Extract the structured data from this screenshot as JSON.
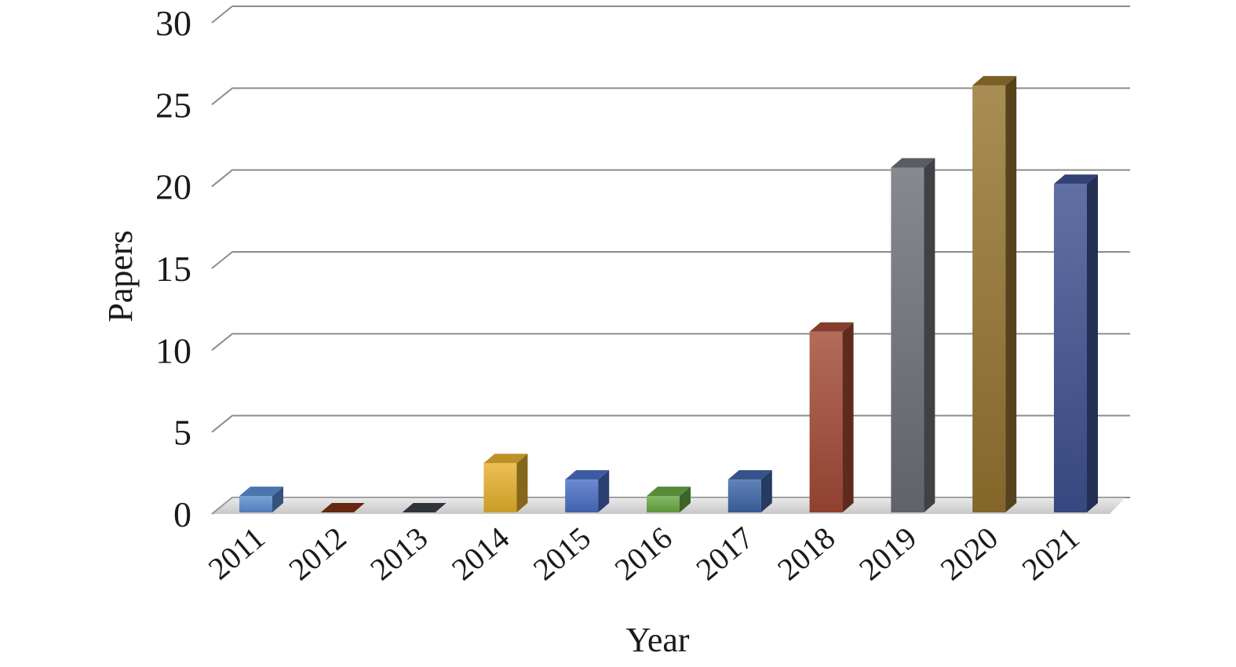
{
  "chart_data": {
    "type": "bar",
    "title": "",
    "xlabel": "Year",
    "ylabel": "Papers",
    "categories": [
      "2011",
      "2012",
      "2013",
      "2014",
      "2015",
      "2016",
      "2017",
      "2018",
      "2019",
      "2020",
      "2021"
    ],
    "values": [
      1,
      0,
      0,
      3,
      2,
      1,
      2,
      11,
      21,
      26,
      20
    ],
    "ylim": [
      0,
      30
    ],
    "yticks": [
      "0",
      "5",
      "10",
      "15",
      "20",
      "25",
      "30"
    ],
    "grid": true,
    "legend": "none",
    "colors": [
      "#5b8fd2",
      "#7a2f12",
      "#3b3f47",
      "#e6b12e",
      "#4a6fc4",
      "#6aaa45",
      "#3f66a8",
      "#a44a36",
      "#6c7077",
      "#957430",
      "#3e5190"
    ]
  }
}
